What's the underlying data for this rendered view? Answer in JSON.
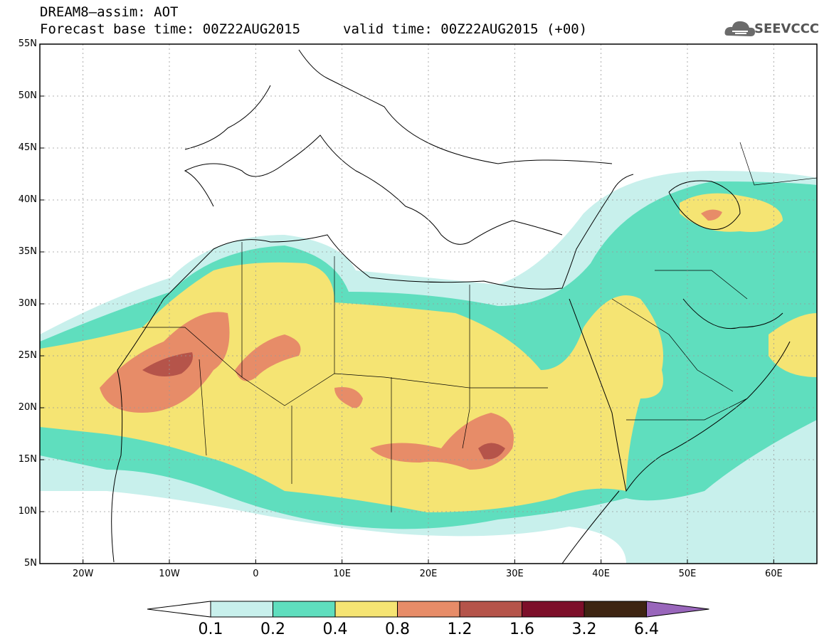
{
  "header": {
    "title_line1": "DREAM8–assim: AOT",
    "title_base": "Forecast base time: 00Z22AUG2015",
    "title_valid": "valid time: 00Z22AUG2015 (+00)"
  },
  "logo": {
    "text": "SEEVCCC",
    "icon": "cloud-logo-icon"
  },
  "map": {
    "lat_labels": [
      "55N",
      "50N",
      "45N",
      "40N",
      "35N",
      "30N",
      "25N",
      "20N",
      "15N",
      "10N",
      "5N"
    ],
    "lon_labels": [
      "20W",
      "10W",
      "0",
      "10E",
      "20E",
      "30E",
      "40E",
      "50E",
      "60E"
    ],
    "lon_range": [
      -25,
      65
    ],
    "lat_range": [
      5,
      55
    ]
  },
  "colorbar": {
    "values": [
      "0.1",
      "0.2",
      "0.4",
      "0.8",
      "1.2",
      "1.6",
      "3.2",
      "6.4"
    ],
    "colors": [
      "#c8f0ec",
      "#5fdebe",
      "#f5e473",
      "#e78c68",
      "#b5544a",
      "#7d0f2a",
      "#3e2512",
      "#9966bb"
    ]
  }
}
